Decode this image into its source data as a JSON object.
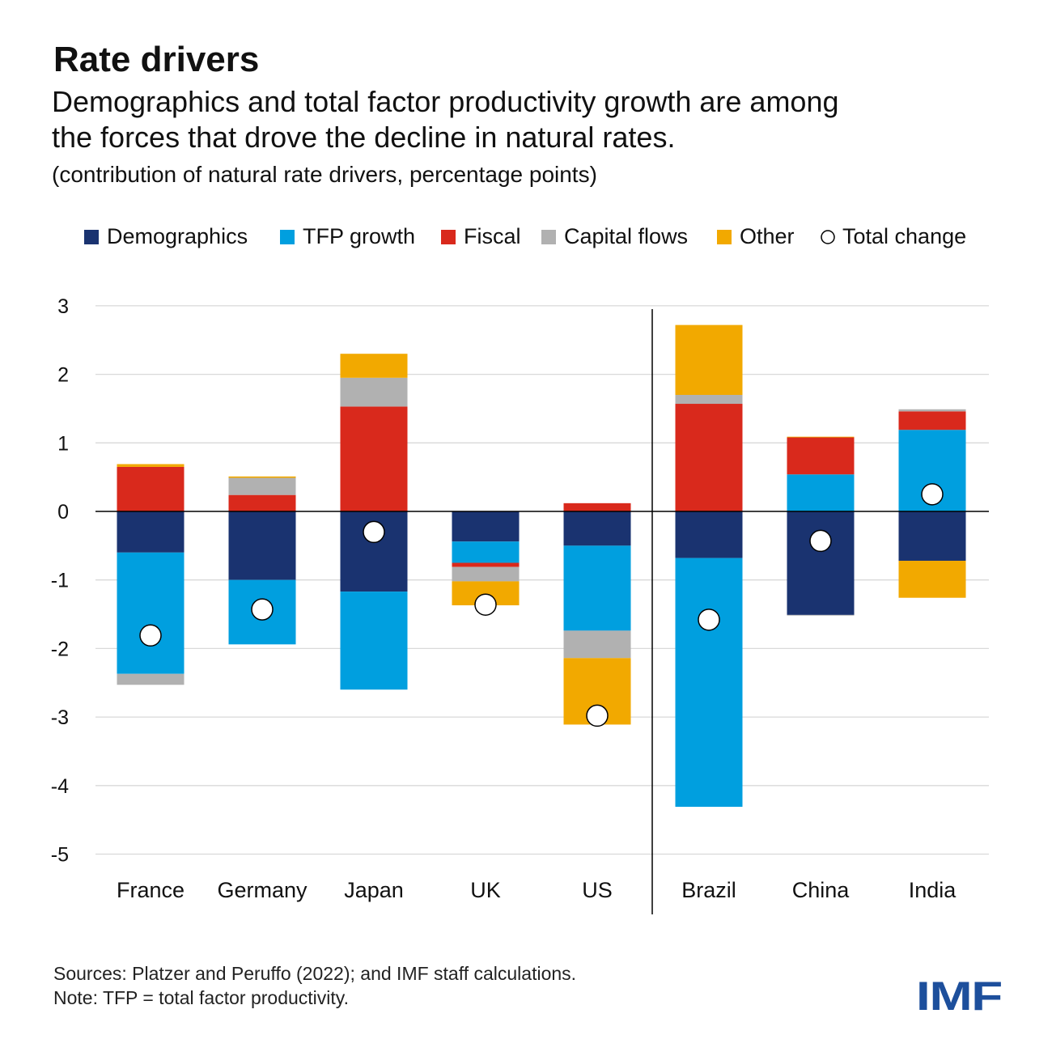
{
  "header": {
    "title": "Rate drivers",
    "subtitle_line1": "Demographics and total factor productivity growth are among",
    "subtitle_line2": "the forces that drove the decline in natural rates.",
    "unit_note": "(contribution of natural rate drivers, percentage points)"
  },
  "footer": {
    "sources": "Sources: Platzer and Peruffo (2022); and IMF staff calculations.",
    "note": "Note: TFP = total factor productivity.",
    "logo": "IMF"
  },
  "chart_data": {
    "type": "bar",
    "stacked": true,
    "title": "Rate drivers",
    "ylabel": "",
    "xlabel": "",
    "ylim": [
      -5,
      3
    ],
    "yticks": [
      3,
      2,
      1,
      0,
      -1,
      -2,
      -3,
      -4,
      -5
    ],
    "ytick_labels": [
      "3",
      "2",
      "1",
      "0",
      "-1",
      "-2",
      "-3",
      "-4",
      "-5"
    ],
    "grid": true,
    "legend_placement": "top",
    "categories": [
      "France",
      "Germany",
      "Japan",
      "UK",
      "US",
      "Brazil",
      "China",
      "India"
    ],
    "group_divider_after": "US",
    "series": [
      {
        "name": "Demographics",
        "color": "#1a3370",
        "values": [
          -0.6,
          -1.0,
          -1.17,
          -0.44,
          -0.5,
          -0.68,
          -1.51,
          -0.72
        ]
      },
      {
        "name": "TFP growth",
        "color": "#009fdf",
        "values": [
          -1.77,
          -0.94,
          -1.43,
          -0.31,
          -1.24,
          -3.63,
          0.54,
          1.19
        ]
      },
      {
        "name": "Fiscal",
        "color": "#d9291c",
        "values": [
          0.65,
          0.24,
          1.53,
          -0.06,
          0.12,
          1.57,
          0.54,
          0.27
        ]
      },
      {
        "name": "Capital flows",
        "color": "#b1b1b1",
        "values": [
          -0.16,
          0.25,
          0.42,
          -0.21,
          -0.4,
          0.13,
          -0.01,
          0.03
        ]
      },
      {
        "name": "Other",
        "color": "#f2a900",
        "values": [
          0.04,
          0.02,
          0.35,
          -0.35,
          -0.97,
          1.02,
          0.01,
          -0.54
        ]
      }
    ],
    "total": {
      "name": "Total change",
      "values": [
        -1.81,
        -1.43,
        -0.3,
        -1.36,
        -2.98,
        -1.58,
        -0.43,
        0.25
      ]
    }
  }
}
